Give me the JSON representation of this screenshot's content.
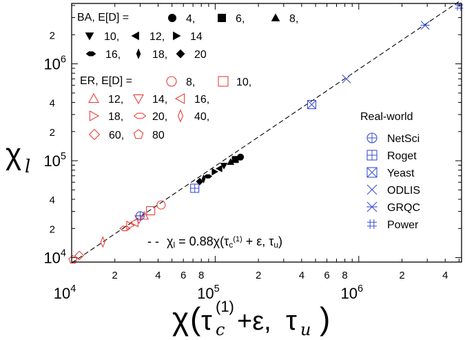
{
  "chart_data": {
    "type": "scatter",
    "x_scale": "log",
    "y_scale": "log",
    "xlim": [
      10000,
      5200000
    ],
    "ylim": [
      9000,
      4200000
    ],
    "x_major_ticks": [
      {
        "value": 10000,
        "mantissa": "10",
        "exponent": "4"
      },
      {
        "value": 100000,
        "mantissa": "10",
        "exponent": "5"
      },
      {
        "value": 1000000,
        "mantissa": "10",
        "exponent": "6"
      }
    ],
    "y_major_ticks": [
      {
        "value": 10000,
        "mantissa": "10",
        "exponent": "4"
      },
      {
        "value": 100000,
        "mantissa": "10",
        "exponent": "5"
      },
      {
        "value": 1000000,
        "mantissa": "10",
        "exponent": "6"
      }
    ],
    "x_minor_labels": [
      {
        "value": 20000,
        "label": "2"
      },
      {
        "value": 40000,
        "label": "4"
      },
      {
        "value": 60000,
        "label": "6"
      },
      {
        "value": 80000,
        "label": "8"
      },
      {
        "value": 200000,
        "label": "2"
      },
      {
        "value": 400000,
        "label": "4"
      },
      {
        "value": 600000,
        "label": "6"
      },
      {
        "value": 800000,
        "label": "8"
      },
      {
        "value": 2000000,
        "label": "2"
      },
      {
        "value": 4000000,
        "label": "4"
      }
    ],
    "y_minor_labels": [
      {
        "value": 20000,
        "label": "2"
      },
      {
        "value": 40000,
        "label": "4"
      },
      {
        "value": 200000,
        "label": "2"
      },
      {
        "value": 400000,
        "label": "4"
      },
      {
        "value": 2000000,
        "label": "2"
      }
    ],
    "xlabel": {
      "chi": "χ",
      "tau_c": "τ",
      "c_sub": "c",
      "sup1": "(1)",
      "plus_eps": "+ε,",
      "tau_u": "τ",
      "u_sub": "u"
    },
    "ylabel": {
      "chi": "χ",
      "sub": "l"
    },
    "fit": {
      "slope": 0.88,
      "label": "χl = 0.88χ(τc(1) + ε, τu)",
      "dash_text": "- -"
    },
    "legend": {
      "ba_title": "BA, E[D] =",
      "er_title": "ER, E[D] =",
      "real_title": "Real-world",
      "ba_entries": [
        {
          "marker": "circle",
          "label": "4,"
        },
        {
          "marker": "square",
          "label": "6,"
        },
        {
          "marker": "triangle-up",
          "label": "8,"
        },
        {
          "marker": "triangle-down",
          "label": "10,"
        },
        {
          "marker": "triangle-left",
          "label": "12,"
        },
        {
          "marker": "triangle-right",
          "label": "14"
        },
        {
          "marker": "hexagon",
          "label": "16,"
        },
        {
          "marker": "thin-diamond",
          "label": "18,"
        },
        {
          "marker": "diamond",
          "label": "20"
        }
      ],
      "er_entries": [
        {
          "marker": "circle",
          "label": "8,"
        },
        {
          "marker": "square",
          "label": "10,"
        },
        {
          "marker": "triangle-up",
          "label": "12,"
        },
        {
          "marker": "triangle-down",
          "label": "14,"
        },
        {
          "marker": "triangle-left",
          "label": "16,"
        },
        {
          "marker": "triangle-right",
          "label": "18,"
        },
        {
          "marker": "hexagon",
          "label": "20,"
        },
        {
          "marker": "thin-diamond",
          "label": "40,"
        },
        {
          "marker": "diamond",
          "label": "60,"
        },
        {
          "marker": "pentagon",
          "label": "80"
        }
      ],
      "real_entries": [
        {
          "marker": "circle-plus",
          "label": "NetSci"
        },
        {
          "marker": "square-plus",
          "label": "Roget"
        },
        {
          "marker": "square-x",
          "label": "Yeast"
        },
        {
          "marker": "x",
          "label": "ODLIS"
        },
        {
          "marker": "asterisk",
          "label": "GRQC"
        },
        {
          "marker": "hash",
          "label": "Power"
        }
      ]
    },
    "series": [
      {
        "group": "BA",
        "color": "#000000",
        "points": [
          {
            "marker": "circle",
            "x": 150000,
            "y": 109000
          },
          {
            "marker": "square",
            "x": 138000,
            "y": 103000
          },
          {
            "marker": "triangle-up",
            "x": 128000,
            "y": 97000
          },
          {
            "marker": "triangle-down",
            "x": 115000,
            "y": 89000
          },
          {
            "marker": "triangle-left",
            "x": 107000,
            "y": 83000
          },
          {
            "marker": "triangle-right",
            "x": 99000,
            "y": 77000
          },
          {
            "marker": "hexagon",
            "x": 89000,
            "y": 69000
          },
          {
            "marker": "thin-diamond",
            "x": 83000,
            "y": 65000
          },
          {
            "marker": "diamond",
            "x": 78000,
            "y": 61000
          }
        ]
      },
      {
        "group": "ER",
        "color": "#e8403a",
        "points": [
          {
            "marker": "circle",
            "x": 42000,
            "y": 35000
          },
          {
            "marker": "square",
            "x": 35500,
            "y": 30500
          },
          {
            "marker": "triangle-up",
            "x": 32000,
            "y": 27000
          },
          {
            "marker": "triangle-down",
            "x": 29500,
            "y": 25000
          },
          {
            "marker": "triangle-left",
            "x": 27500,
            "y": 23000
          },
          {
            "marker": "triangle-right",
            "x": 25500,
            "y": 21500
          },
          {
            "marker": "hexagon",
            "x": 23500,
            "y": 20000
          },
          {
            "marker": "thin-diamond",
            "x": 16500,
            "y": 14500
          },
          {
            "marker": "diamond",
            "x": 11300,
            "y": 10500
          },
          {
            "marker": "pentagon",
            "x": 10200,
            "y": 9500
          }
        ]
      },
      {
        "group": "Real-world",
        "color": "#3a4fd0",
        "points": [
          {
            "marker": "circle-plus",
            "name": "NetSci",
            "x": 30000,
            "y": 27000
          },
          {
            "marker": "square-plus",
            "name": "Roget",
            "x": 72000,
            "y": 52000
          },
          {
            "marker": "square-x",
            "name": "Yeast",
            "x": 470000,
            "y": 380000
          },
          {
            "marker": "x",
            "name": "ODLIS",
            "x": 820000,
            "y": 700000
          },
          {
            "marker": "asterisk",
            "name": "GRQC",
            "x": 2900000,
            "y": 2500000
          },
          {
            "marker": "hash",
            "name": "Power",
            "x": 5000000,
            "y": 3900000
          }
        ]
      }
    ]
  }
}
